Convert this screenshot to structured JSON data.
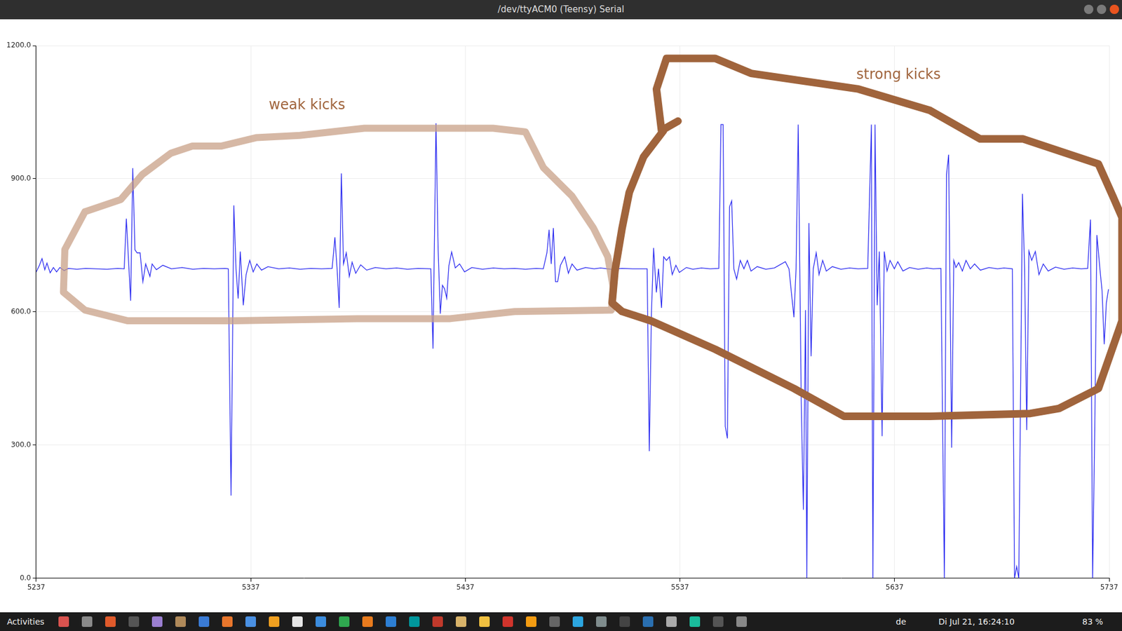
{
  "window_title": "/dev/ttyACM0 (Teensy) Serial",
  "chart_data": {
    "type": "line",
    "color": "#2a2af0",
    "grid": true,
    "xlim": [
      5237,
      5737
    ],
    "xticks": [
      5237,
      5337,
      5437,
      5537,
      5637,
      5737
    ],
    "ylim": [
      0,
      1200
    ],
    "yticks": [
      {
        "value": 0,
        "label": "0.0"
      },
      {
        "value": 300,
        "label": "300.0"
      },
      {
        "value": 600,
        "label": "600.0"
      },
      {
        "value": 900,
        "label": "900.0"
      },
      {
        "value": 1200,
        "label": "1200.0"
      }
    ],
    "x": [
      5237,
      5238.5,
      5239.7,
      5241,
      5242,
      5243.5,
      5245,
      5246.5,
      5248,
      5250,
      5252,
      5256,
      5260,
      5265,
      5270,
      5275,
      5278,
      5279,
      5281,
      5282,
      5283,
      5284,
      5285.4,
      5286.7,
      5288,
      5290,
      5291,
      5293,
      5296,
      5300,
      5305,
      5310,
      5315,
      5320,
      5325,
      5326.5,
      5327.8,
      5329.1,
      5330.1,
      5331.1,
      5332.1,
      5333.5,
      5334.8,
      5336.5,
      5338.1,
      5339.8,
      5342,
      5345,
      5350,
      5355,
      5360,
      5365,
      5370,
      5374.9,
      5376.2,
      5377.2,
      5378.2,
      5379.2,
      5380.2,
      5381.5,
      5382.9,
      5384.2,
      5385.9,
      5388.2,
      5391,
      5395,
      5400,
      5405,
      5410,
      5415,
      5420.9,
      5421.9,
      5423.3,
      5424.3,
      5425.3,
      5426.3,
      5427.3,
      5428.3,
      5429.3,
      5430.6,
      5432.3,
      5434.3,
      5436.6,
      5440,
      5445,
      5450,
      5455,
      5460,
      5465,
      5470,
      5473.3,
      5475,
      5476,
      5477,
      5478,
      5479,
      5480,
      5481.3,
      5483.3,
      5485,
      5486.7,
      5489,
      5493,
      5497,
      5500,
      5505,
      5510,
      5515,
      5521.7,
      5522.7,
      5523.7,
      5524.7,
      5526,
      5527,
      5528.4,
      5529.4,
      5530.7,
      5532.1,
      5533.4,
      5535.1,
      5536.7,
      5540,
      5543,
      5547,
      5551,
      5555.1,
      5556.1,
      5557.1,
      5558.1,
      5559.1,
      5560.1,
      5561.1,
      5562.1,
      5563.4,
      5565.1,
      5566.8,
      5568.4,
      5570.1,
      5573,
      5577,
      5581,
      5586.1,
      5587.8,
      5590.1,
      5591.1,
      5592.1,
      5593.5,
      5594.5,
      5595.5,
      5596.1,
      5597.1,
      5598.1,
      5599.1,
      5600.5,
      5601.8,
      5603.5,
      5605.2,
      5608,
      5612,
      5616,
      5620,
      5624.5,
      5626.2,
      5626.9,
      5627.9,
      5628.9,
      5629.9,
      5631.2,
      5632.2,
      5633.5,
      5634.9,
      5636.9,
      5638.5,
      5640.9,
      5644,
      5648,
      5652,
      5655,
      5658.6,
      5660.2,
      5661.2,
      5662.2,
      5663.6,
      5664.6,
      5665.6,
      5666.9,
      5668.6,
      5670.3,
      5672.3,
      5674.3,
      5677,
      5681,
      5685,
      5688,
      5691.9,
      5692.9,
      5693.9,
      5694.9,
      5695.6,
      5696.6,
      5697.6,
      5698.6,
      5699.6,
      5700.9,
      5702.6,
      5704.3,
      5706.3,
      5708.6,
      5712,
      5716,
      5720,
      5724,
      5727,
      5728.3,
      5729.3,
      5730.3,
      5731.3,
      5732.7,
      5733.7,
      5734.7,
      5735.7,
      5736.7
    ],
    "values": [
      690,
      705,
      720,
      695,
      710,
      688,
      700,
      690,
      700,
      693,
      698,
      696,
      698,
      697,
      696,
      698,
      697,
      810,
      625,
      924,
      740,
      733,
      733,
      668,
      708,
      680,
      708,
      695,
      705,
      697,
      700,
      696,
      698,
      697,
      698,
      697,
      186,
      840,
      697,
      630,
      736,
      615,
      684,
      716,
      690,
      708,
      694,
      702,
      697,
      699,
      696,
      698,
      697,
      698,
      768,
      697,
      609,
      912,
      708,
      733,
      680,
      712,
      687,
      706,
      694,
      700,
      697,
      699,
      696,
      698,
      697,
      517,
      1025,
      740,
      596,
      660,
      652,
      631,
      704,
      735,
      699,
      708,
      690,
      700,
      696,
      699,
      697,
      698,
      696,
      698,
      697,
      733,
      785,
      708,
      789,
      668,
      668,
      705,
      724,
      687,
      708,
      694,
      700,
      697,
      699,
      696,
      698,
      697,
      697,
      286,
      596,
      744,
      644,
      697,
      609,
      724,
      716,
      724,
      684,
      705,
      689,
      700,
      696,
      699,
      697,
      698,
      1022,
      1022,
      342,
      315,
      837,
      850,
      697,
      674,
      716,
      697,
      716,
      692,
      702,
      696,
      699,
      713,
      697,
      588,
      697,
      1022,
      403,
      154,
      604,
      0,
      800,
      500,
      697,
      733,
      684,
      716,
      692,
      702,
      696,
      699,
      697,
      698,
      1022,
      0,
      1022,
      615,
      736,
      320,
      736,
      692,
      716,
      697,
      713,
      692,
      700,
      696,
      699,
      697,
      698,
      0,
      909,
      954,
      294,
      716,
      700,
      711,
      692,
      716,
      697,
      708,
      694,
      700,
      697,
      699,
      697,
      0,
      26,
      0,
      355,
      866,
      697,
      334,
      737,
      716,
      736,
      684,
      708,
      692,
      701,
      696,
      699,
      697,
      698,
      808,
      0,
      339,
      773,
      697,
      647,
      527,
      620,
      651
    ],
    "annotations": [
      {
        "text": "weak kicks",
        "color": "#a0643c"
      },
      {
        "text": "strong kicks",
        "color": "#a0643c"
      }
    ]
  },
  "taskbar": {
    "activities": "Activities",
    "keyboard": "de",
    "clock": "Di Jul 21, 16:24:10",
    "battery": "83 %"
  }
}
